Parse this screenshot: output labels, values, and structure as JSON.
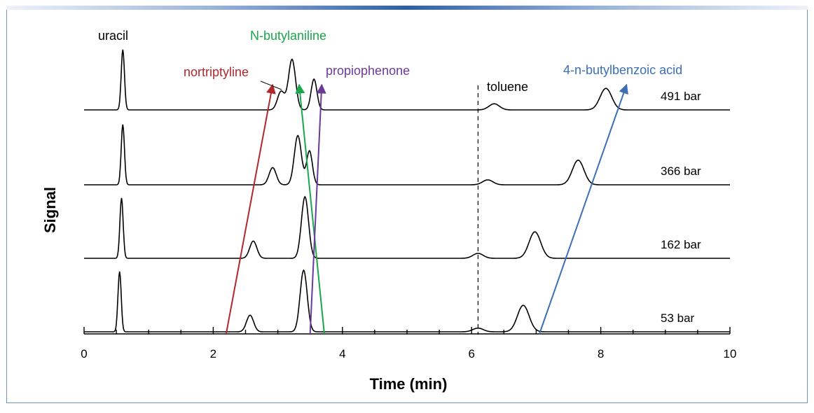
{
  "chart_data": {
    "type": "line",
    "xlabel": "Time (min)",
    "ylabel": "Signal",
    "xlim": [
      0,
      10
    ],
    "xticks": [
      0,
      2,
      4,
      6,
      8,
      10
    ],
    "grid": false,
    "baseline_peaks": {
      "uracil": {
        "label": "uracil"
      },
      "nortriptyline": {
        "label": "nortriptyline",
        "color": "#b0282e"
      },
      "n_butylaniline": {
        "label": "N-butylaniline",
        "color": "#1aa64a"
      },
      "propiophenone": {
        "label": "propiophenone",
        "color": "#6a3a9a"
      },
      "toluene": {
        "label": "toluene",
        "marker_time": 6.1
      },
      "butylbenzoic": {
        "label": "4-n-butylbenzoic acid",
        "color": "#3c6fb4"
      }
    },
    "series": [
      {
        "name": "491 bar",
        "peaks": [
          {
            "compound": "uracil",
            "t": 0.6,
            "h": 0.98
          },
          {
            "compound": "nortriptyline",
            "t": 3.05,
            "h": 0.3
          },
          {
            "compound": "n_butylaniline",
            "t": 3.22,
            "h": 0.82
          },
          {
            "compound": "propiophenone",
            "t": 3.56,
            "h": 0.5
          },
          {
            "compound": "toluene",
            "t": 6.35,
            "h": 0.1
          },
          {
            "compound": "butylbenzoic",
            "t": 8.08,
            "h": 0.35
          }
        ]
      },
      {
        "name": "366 bar",
        "peaks": [
          {
            "compound": "uracil",
            "t": 0.6,
            "h": 0.98
          },
          {
            "compound": "nortriptyline",
            "t": 2.92,
            "h": 0.28
          },
          {
            "compound": "n_butylaniline",
            "t": 3.31,
            "h": 0.8
          },
          {
            "compound": "propiophenone",
            "t": 3.49,
            "h": 0.55
          },
          {
            "compound": "toluene",
            "t": 6.25,
            "h": 0.08
          },
          {
            "compound": "butylbenzoic",
            "t": 7.65,
            "h": 0.4
          }
        ]
      },
      {
        "name": "162 bar",
        "peaks": [
          {
            "compound": "uracil",
            "t": 0.58,
            "h": 0.98
          },
          {
            "compound": "nortriptyline",
            "t": 2.62,
            "h": 0.28
          },
          {
            "compound": "n_butylaniline",
            "t": 3.42,
            "h": 1.0
          },
          {
            "compound": "propiophenone",
            "t": 3.42,
            "h": 0.0
          },
          {
            "compound": "toluene",
            "t": 6.1,
            "h": 0.08
          },
          {
            "compound": "butylbenzoic",
            "t": 6.98,
            "h": 0.43
          }
        ]
      },
      {
        "name": "53 bar",
        "peaks": [
          {
            "compound": "uracil",
            "t": 0.55,
            "h": 0.98
          },
          {
            "compound": "nortriptyline",
            "t": 2.57,
            "h": 0.27
          },
          {
            "compound": "n_butylaniline",
            "t": 3.4,
            "h": 1.0
          },
          {
            "compound": "propiophenone",
            "t": 3.4,
            "h": 0.0
          },
          {
            "compound": "toluene",
            "t": 6.1,
            "h": 0.06
          },
          {
            "compound": "butylbenzoic",
            "t": 6.8,
            "h": 0.43
          }
        ]
      }
    ],
    "annotations": {
      "arrows": [
        {
          "compound": "nortriptyline",
          "from_t": 2.2,
          "to_t": 2.92
        },
        {
          "compound": "n_butylaniline",
          "from_t": 3.72,
          "to_t": 3.33
        },
        {
          "compound": "propiophenone",
          "from_t": 3.5,
          "to_t": 3.68
        },
        {
          "compound": "butylbenzoic",
          "from_t": 7.05,
          "to_t": 8.4
        }
      ]
    }
  }
}
